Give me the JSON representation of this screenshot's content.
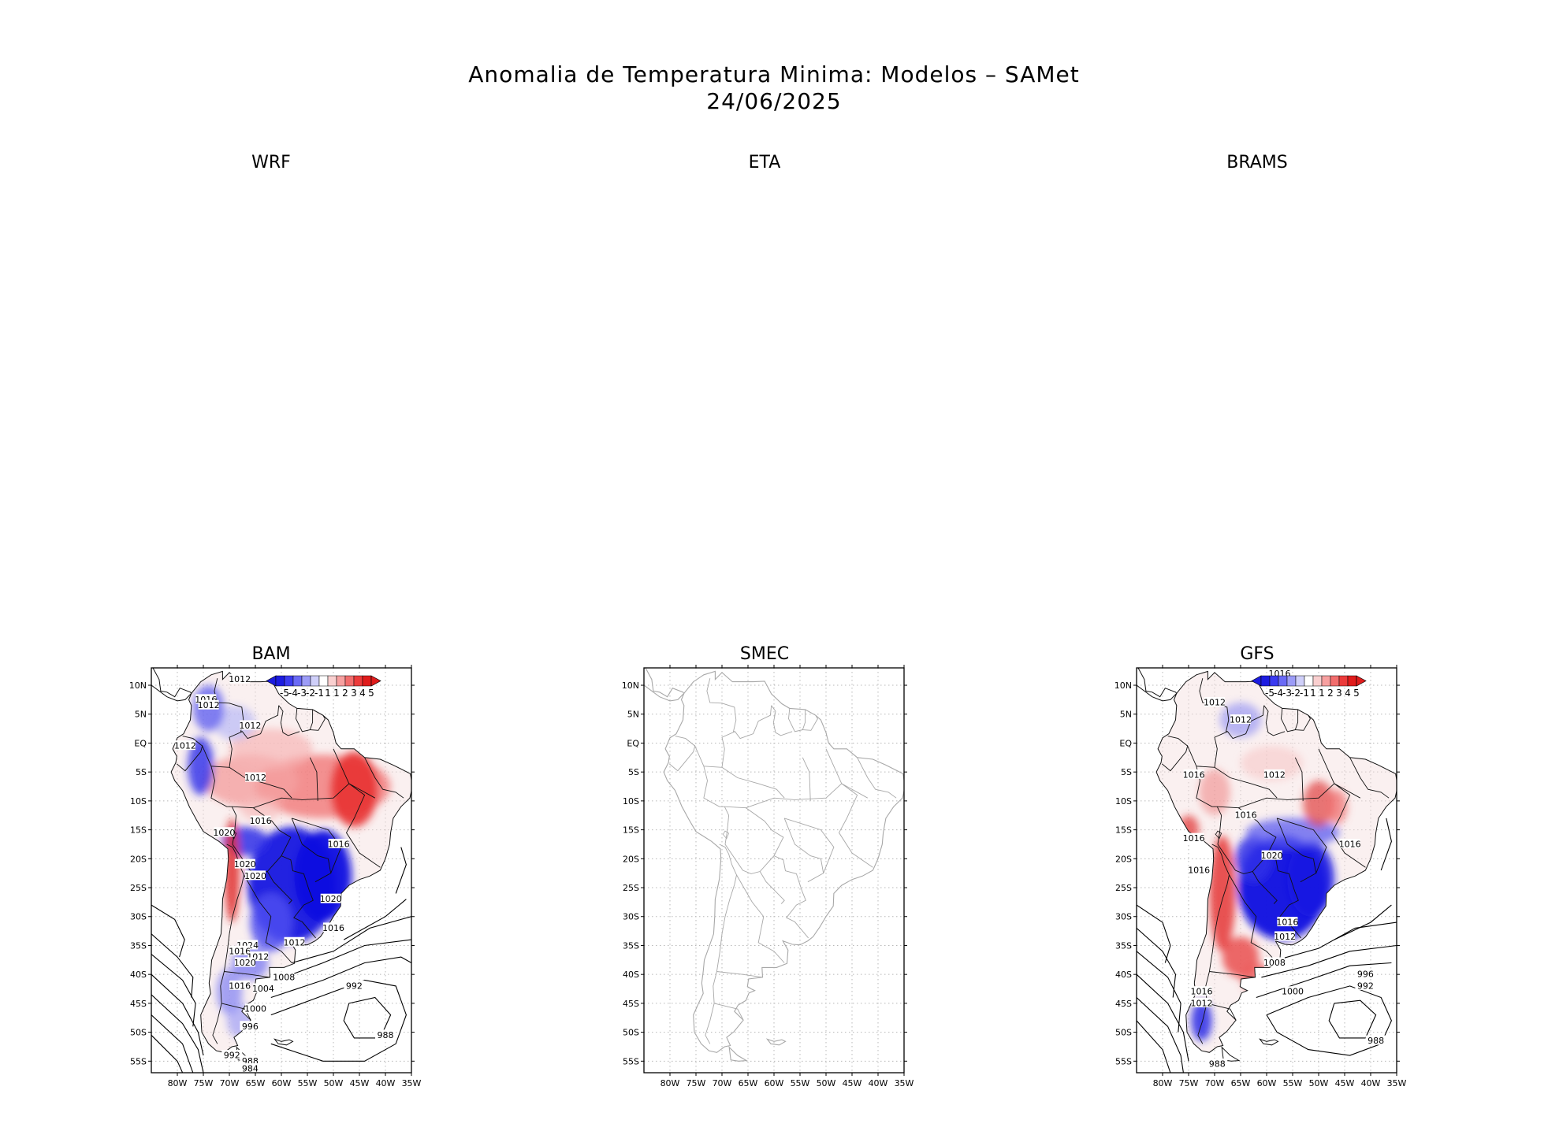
{
  "title": "Anomalia de Temperatura Minima: Modelos – SAMet",
  "date": "24/06/2025",
  "panels": [
    {
      "name": "WRF",
      "has_map": false
    },
    {
      "name": "ETA",
      "has_map": false
    },
    {
      "name": "BRAMS",
      "has_map": false
    },
    {
      "name": "BAM",
      "has_map": true,
      "has_data": true,
      "isobars": [
        "1012",
        "1016",
        "1012",
        "1012",
        "1012",
        "1012",
        "1016",
        "1016",
        "1020",
        "1020",
        "1020",
        "1020",
        "1016",
        "1012",
        "1024",
        "1016",
        "1012",
        "1020",
        "1008",
        "1016",
        "1004",
        "992",
        "1000",
        "996",
        "988",
        "992",
        "988",
        "984"
      ]
    },
    {
      "name": "SMEC",
      "has_map": true,
      "has_data": false,
      "isobars": []
    },
    {
      "name": "GFS",
      "has_map": true,
      "has_data": true,
      "isobars": [
        "1016",
        "1012",
        "1012",
        "1016",
        "1012",
        "1016",
        "1016",
        "1016",
        "1020",
        "1016",
        "1016",
        "1012",
        "1008",
        "996",
        "992",
        "1000",
        "1016",
        "1012",
        "988",
        "988"
      ]
    }
  ],
  "lat_ticks": [
    "10N",
    "5N",
    "EQ",
    "5S",
    "10S",
    "15S",
    "20S",
    "25S",
    "30S",
    "35S",
    "40S",
    "45S",
    "50S",
    "55S"
  ],
  "lon_ticks": [
    "80W",
    "75W",
    "70W",
    "65W",
    "60W",
    "55W",
    "50W",
    "45W",
    "40W",
    "35W"
  ],
  "colorbar": {
    "labels": [
      "-5",
      "-4",
      "-3",
      "-2",
      "-1",
      "1",
      "1",
      "2",
      "3",
      "4",
      "5"
    ],
    "colors": [
      "#1c1ce0",
      "#3b3bf0",
      "#6a6af5",
      "#9c9cf7",
      "#cfcff9",
      "#ffffff",
      "#f9cfcf",
      "#f7a0a0",
      "#f26d6d",
      "#ec3b3b",
      "#e01c1c"
    ]
  },
  "colors": {
    "warm": "#e83030",
    "cold": "#1e1ee6",
    "coast": "#000000",
    "coast_empty": "#aaaaaa"
  }
}
